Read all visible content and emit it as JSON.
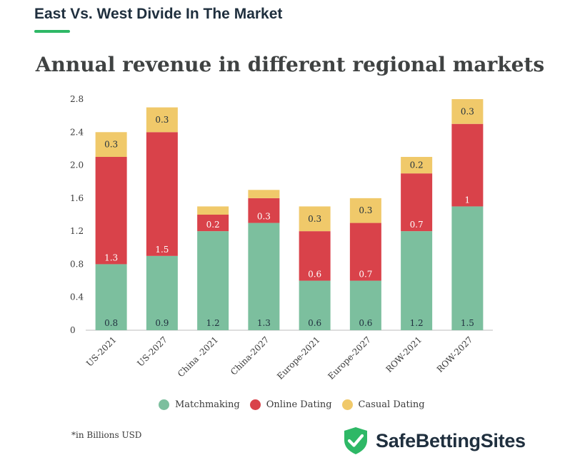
{
  "header": {
    "title": "East Vs. West Divide In The Market",
    "accent_color": "#2eb866"
  },
  "footnote": "*in Billions USD",
  "brand": {
    "name": "SafeBettingSites",
    "icon": "shield-check-icon",
    "color": "#2eb866"
  },
  "chart_data": {
    "type": "bar",
    "stacked": true,
    "title": "Annual revenue in different regional markets",
    "categories": [
      "US-2021",
      "US-2027",
      "China -2021",
      "China-2027",
      "Europe-2021",
      "Europe-2027",
      "ROW-2021",
      "ROW-2027"
    ],
    "ylim": [
      0,
      2.8
    ],
    "yticks": [
      "0",
      "0.4",
      "0.8",
      "1.2",
      "1.6",
      "2.0",
      "2.4",
      "2.8"
    ],
    "grid": false,
    "legend_position": "bottom",
    "series": [
      {
        "name": "Matchmaking",
        "color": "#7cbf9e",
        "values": [
          0.8,
          0.9,
          1.2,
          1.3,
          0.6,
          0.6,
          1.2,
          1.5
        ],
        "labels": [
          "0.8",
          "0.9",
          "1.2",
          "1.3",
          "0.6",
          "0.6",
          "1.2",
          "1.5"
        ]
      },
      {
        "name": "Online Dating",
        "color": "#d9424a",
        "values": [
          1.3,
          1.5,
          0.2,
          0.3,
          0.6,
          0.7,
          0.7,
          1.0
        ],
        "labels": [
          "1.3",
          "1.5",
          "0.2",
          "0.3",
          "0.6",
          "0.7",
          "0.7",
          "1"
        ]
      },
      {
        "name": "Casual Dating",
        "color": "#f0c96a",
        "values": [
          0.3,
          0.3,
          0.1,
          0.1,
          0.3,
          0.3,
          0.2,
          0.3
        ],
        "labels": [
          "0.3",
          "0.3",
          "",
          "",
          "0.3",
          "0.3",
          "0.2",
          "0.3"
        ]
      }
    ]
  }
}
